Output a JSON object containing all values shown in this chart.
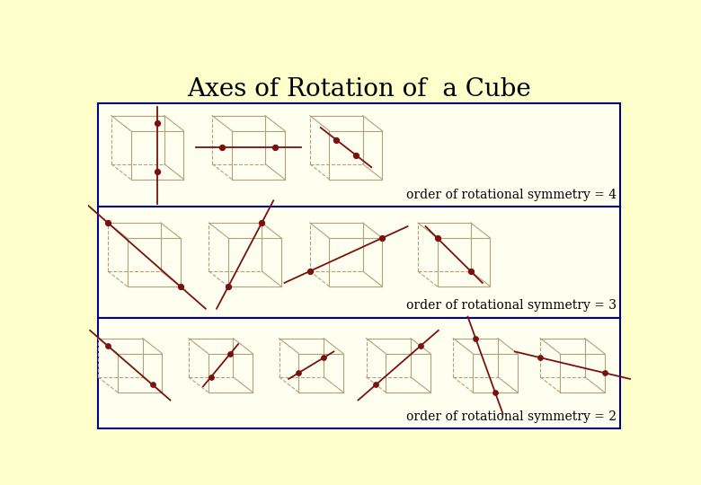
{
  "title": "Axes of Rotation of  a Cube",
  "bg_color": "#FFFFCC",
  "panel_bg": "#FFFFF0",
  "border_color": "#00008B",
  "cube_edge_color": "#B0A080",
  "axis_color": "#7B1010",
  "dot_color": "#7B1010",
  "text_color": "#000000",
  "label_order4": "order of rotational symmetry = 4",
  "label_order3": "order of rotational symmetry = 3",
  "label_order2": "order of rotational symmetry = 2",
  "title_fontsize": 20,
  "label_fontsize": 10
}
